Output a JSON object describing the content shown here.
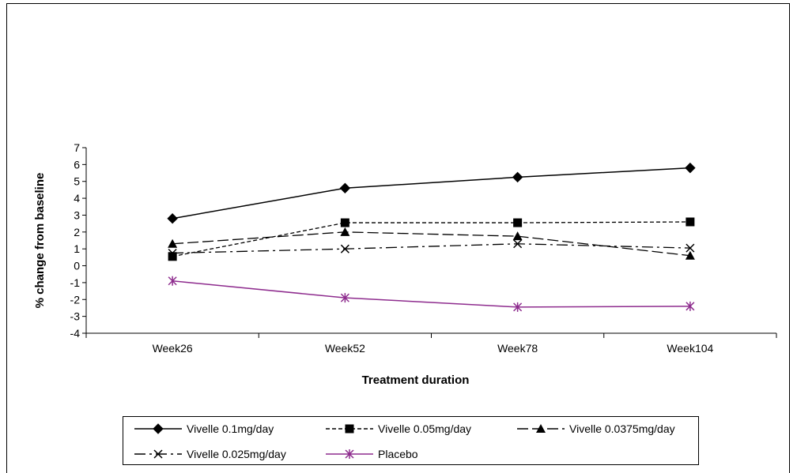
{
  "chart_data": {
    "type": "line",
    "title": "",
    "xlabel": "Treatment duration",
    "ylabel": "% change from baseline",
    "categories": [
      "Week26",
      "Week52",
      "Week78",
      "Week104"
    ],
    "ylim": [
      -4,
      7
    ],
    "yticks": [
      -4,
      -3,
      -2,
      -1,
      0,
      1,
      2,
      3,
      4,
      5,
      6,
      7
    ],
    "grid": false,
    "legend_position": "bottom",
    "series": [
      {
        "name": "Vivelle 0.1mg/day",
        "values": [
          2.8,
          4.6,
          5.25,
          5.8
        ],
        "color": "#000000",
        "dash": "solid",
        "marker": "diamond"
      },
      {
        "name": "Vivelle 0.05mg/day",
        "values": [
          0.55,
          2.55,
          2.55,
          2.6
        ],
        "color": "#000000",
        "dash": "short-dash",
        "marker": "square"
      },
      {
        "name": "Vivelle 0.0375mg/day",
        "values": [
          1.3,
          2.0,
          1.75,
          0.6
        ],
        "color": "#000000",
        "dash": "long-dash",
        "marker": "triangle"
      },
      {
        "name": "Vivelle 0.025mg/day",
        "values": [
          0.75,
          1.0,
          1.3,
          1.05
        ],
        "color": "#000000",
        "dash": "dash-dot",
        "marker": "x"
      },
      {
        "name": "Placebo",
        "values": [
          -0.9,
          -1.9,
          -2.45,
          -2.4
        ],
        "color": "#8e2c8e",
        "dash": "solid",
        "marker": "star"
      }
    ]
  }
}
